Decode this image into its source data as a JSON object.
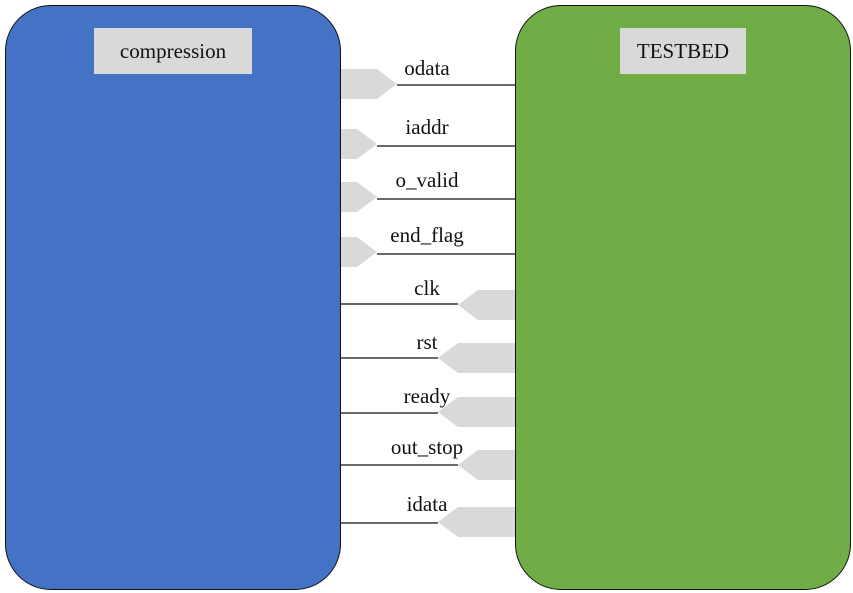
{
  "blocks": {
    "left": {
      "title": "compression",
      "fill": "#4472c4"
    },
    "right": {
      "title": "TESTBED",
      "fill": "#70ad47"
    }
  },
  "port_color": "#d9d9d9",
  "signals": [
    {
      "name": "odata",
      "direction": "output"
    },
    {
      "name": "iaddr",
      "direction": "output"
    },
    {
      "name": "o_valid",
      "direction": "output"
    },
    {
      "name": "end_flag",
      "direction": "output"
    },
    {
      "name": "clk",
      "direction": "input"
    },
    {
      "name": "rst",
      "direction": "input"
    },
    {
      "name": "ready",
      "direction": "input"
    },
    {
      "name": "out_stop",
      "direction": "input"
    },
    {
      "name": "idata",
      "direction": "input"
    }
  ]
}
